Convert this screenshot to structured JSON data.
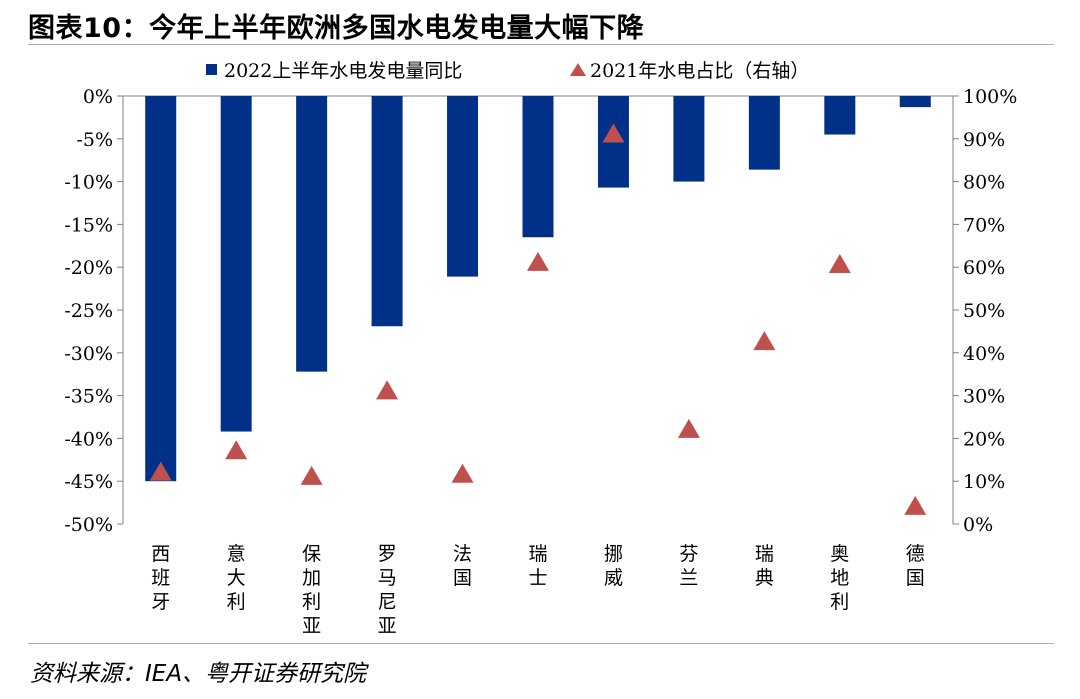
{
  "title": "图表10：今年上半年欧洲多国水电发电量大幅下降",
  "source": "资料来源：IEA、粤开证券研究院",
  "chart_data": {
    "type": "bar",
    "categories": [
      "西班牙",
      "意大利",
      "保加利亚",
      "罗马尼亚",
      "法国",
      "瑞士",
      "挪威",
      "芬兰",
      "瑞典",
      "奥地利",
      "德国"
    ],
    "series": [
      {
        "name": "2022上半年水电发电量同比",
        "type": "bar",
        "axis": "left",
        "color": "#003087",
        "values": [
          -45,
          -39.2,
          -32.2,
          -26.9,
          -21.1,
          -16.5,
          -10.7,
          -10.0,
          -8.6,
          -4.5,
          -1.3
        ]
      },
      {
        "name": "2021年水电占比（右轴）",
        "type": "scatter",
        "marker": "triangle",
        "axis": "right",
        "color": "#c0504d",
        "values": [
          12,
          17,
          11,
          31,
          11.5,
          61,
          91,
          22,
          42.5,
          60.5,
          4
        ]
      }
    ],
    "left_axis": {
      "range": [
        -50,
        0
      ],
      "ticks": [
        "0%",
        "-5%",
        "-10%",
        "-15%",
        "-20%",
        "-25%",
        "-30%",
        "-35%",
        "-40%",
        "-45%",
        "-50%"
      ]
    },
    "right_axis": {
      "range": [
        0,
        100
      ],
      "ticks": [
        "100%",
        "90%",
        "80%",
        "70%",
        "60%",
        "50%",
        "40%",
        "30%",
        "20%",
        "10%",
        "0%"
      ]
    },
    "legend_position": "top"
  }
}
